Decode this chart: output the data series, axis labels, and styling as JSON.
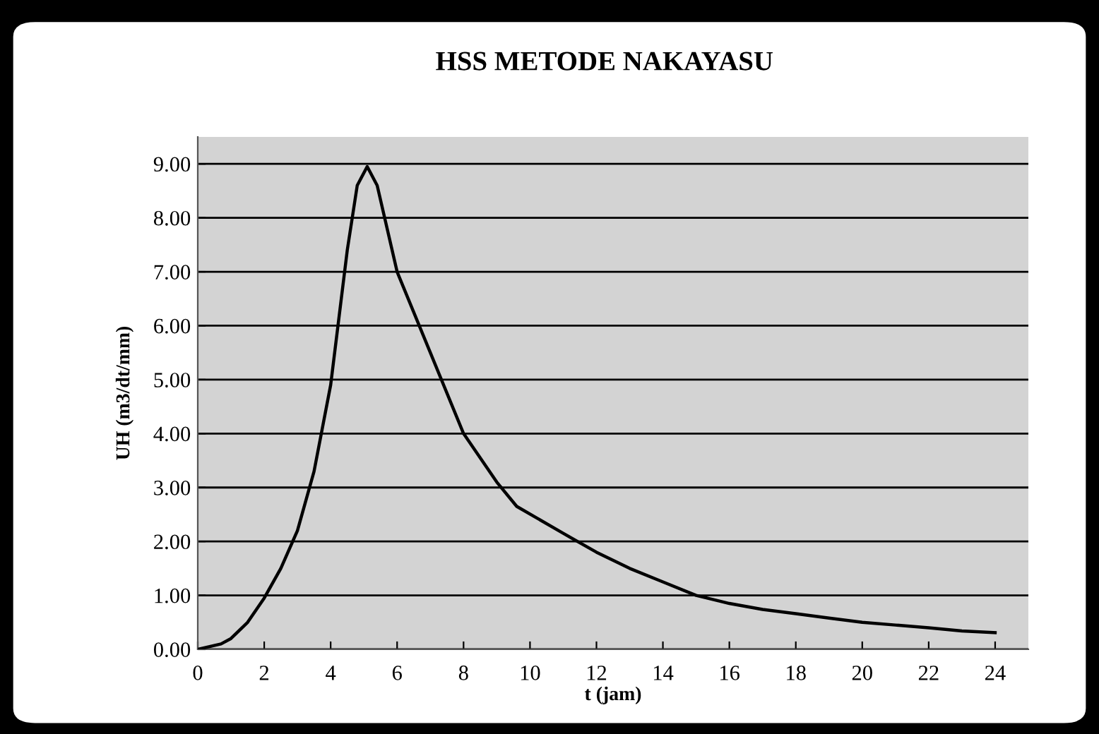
{
  "chart_data": {
    "type": "line",
    "title": "HSS METODE NAKAYASU",
    "xlabel": "t (jam)",
    "ylabel": "UH (m3/dt/mm)",
    "series": [
      {
        "color": "#000000",
        "x": [
          0,
          0.7,
          1,
          1.5,
          2,
          2.5,
          3,
          3.5,
          4,
          4.5,
          4.8,
          5.1,
          5.4,
          6,
          7,
          8,
          9,
          9.6,
          11,
          12,
          13,
          14,
          15,
          16,
          17,
          18,
          19,
          20,
          21,
          22,
          23,
          24
        ],
        "values": [
          0,
          0.1,
          0.2,
          0.5,
          0.95,
          1.5,
          2.2,
          3.3,
          4.9,
          7.4,
          8.6,
          8.95,
          8.6,
          7.0,
          5.5,
          4.0,
          3.1,
          2.65,
          2.15,
          1.8,
          1.5,
          1.25,
          1.0,
          0.85,
          0.74,
          0.66,
          0.58,
          0.5,
          0.45,
          0.4,
          0.34,
          0.31
        ]
      }
    ],
    "xlim": [
      0,
      25
    ],
    "xticks": [
      0,
      2,
      4,
      6,
      8,
      10,
      12,
      14,
      16,
      18,
      20,
      22,
      24
    ],
    "ylim": [
      0,
      9.5
    ],
    "yticks": [
      {
        "value": 0,
        "label": "0.00"
      },
      {
        "value": 1,
        "label": "1.00"
      },
      {
        "value": 2,
        "label": "2.00"
      },
      {
        "value": 3,
        "label": "3.00"
      },
      {
        "value": 4,
        "label": "4.00"
      },
      {
        "value": 5,
        "label": "5.00"
      },
      {
        "value": 6,
        "label": "6.00"
      },
      {
        "value": 7,
        "label": "7.00"
      },
      {
        "value": 8,
        "label": "8.00"
      },
      {
        "value": 9,
        "label": "9.00"
      }
    ],
    "grid": "y",
    "legend": false,
    "marker": "none",
    "line_style": "solid"
  }
}
